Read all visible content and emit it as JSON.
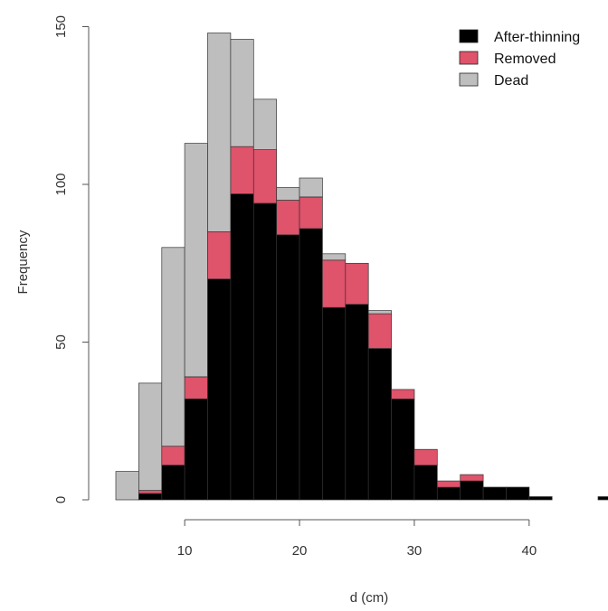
{
  "chart_data": {
    "type": "bar",
    "stacked": true,
    "title": "",
    "xlabel": "d (cm)",
    "ylabel": "Frequency",
    "bin_width": 2,
    "bin_starts": [
      4,
      6,
      8,
      10,
      12,
      14,
      16,
      18,
      20,
      22,
      24,
      26,
      28,
      30,
      32,
      34,
      36,
      38,
      40,
      42,
      44,
      46
    ],
    "x_ticks": [
      10,
      20,
      30,
      40
    ],
    "y_ticks": [
      0,
      50,
      100,
      150
    ],
    "xlim": [
      4,
      46
    ],
    "ylim": [
      0,
      150
    ],
    "grid": false,
    "legend_position": "top-right",
    "series": [
      {
        "name": "After-thinning",
        "color": "#000000",
        "values": [
          0,
          2,
          11,
          32,
          70,
          97,
          94,
          84,
          86,
          61,
          62,
          48,
          32,
          11,
          4,
          6,
          4,
          4,
          1,
          0,
          0,
          1
        ]
      },
      {
        "name": "Removed",
        "color": "#DF536B",
        "values": [
          0,
          1,
          6,
          7,
          15,
          15,
          17,
          11,
          10,
          15,
          13,
          11,
          3,
          5,
          2,
          2,
          0,
          0,
          0,
          0,
          0,
          0
        ]
      },
      {
        "name": "Dead",
        "color": "#BEBEBE",
        "values": [
          9,
          34,
          63,
          74,
          63,
          34,
          16,
          4,
          6,
          2,
          0,
          1,
          0,
          0,
          0,
          0,
          0,
          0,
          0,
          0,
          0,
          0
        ]
      }
    ]
  }
}
